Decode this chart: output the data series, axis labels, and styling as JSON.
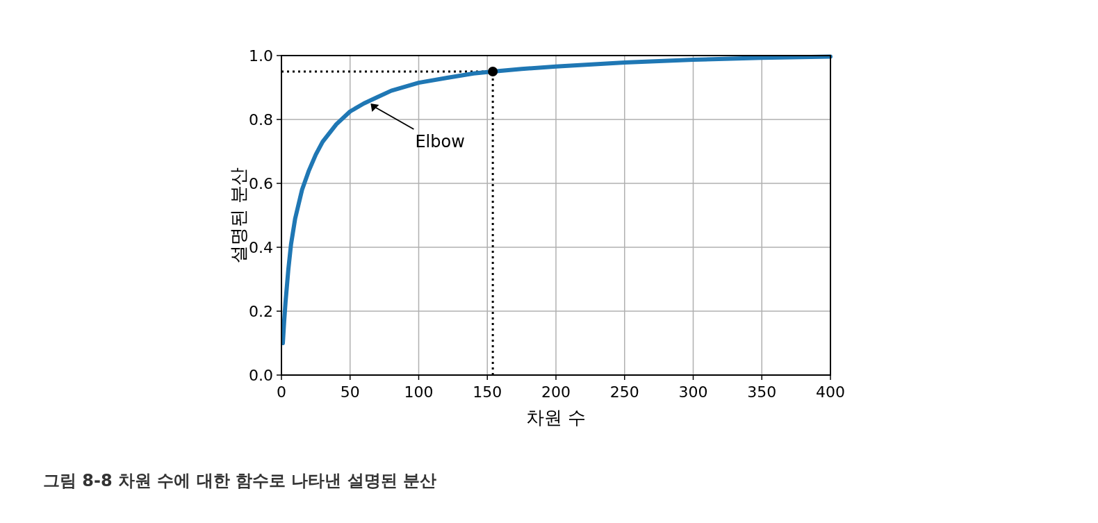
{
  "chart_data": {
    "type": "line",
    "xlabel": "차원 수",
    "ylabel": "설명된 분산",
    "x": [
      1,
      2,
      3,
      5,
      7,
      10,
      15,
      20,
      25,
      30,
      40,
      50,
      60,
      70,
      80,
      100,
      120,
      140,
      154,
      175,
      200,
      250,
      300,
      350,
      400
    ],
    "series": [
      {
        "color": "#1f77b4",
        "values": [
          0.1,
          0.17,
          0.23,
          0.33,
          0.41,
          0.49,
          0.58,
          0.64,
          0.69,
          0.73,
          0.785,
          0.825,
          0.85,
          0.87,
          0.89,
          0.915,
          0.93,
          0.944,
          0.95,
          0.958,
          0.966,
          0.978,
          0.987,
          0.993,
          0.997
        ]
      },
      {
        "type": "scatter",
        "color": "#000000",
        "marker": "circle",
        "x": [
          154
        ],
        "values": [
          0.95
        ]
      }
    ],
    "xlim": [
      0,
      400
    ],
    "ylim": [
      0,
      1
    ],
    "xticks": [
      0,
      50,
      100,
      150,
      200,
      250,
      300,
      350,
      400
    ],
    "yticks": [
      {
        "value": 0,
        "label": "0.0"
      },
      {
        "value": 0.2,
        "label": "0.2"
      },
      {
        "value": 0.4,
        "label": "0.4"
      },
      {
        "value": 0.6,
        "label": "0.6"
      },
      {
        "value": 0.8,
        "label": "0.8"
      },
      {
        "value": 1,
        "label": "1.0"
      }
    ],
    "grid": true,
    "ref_lines": [
      {
        "axis": "x",
        "value": 154,
        "color": "#000000",
        "line_style": "dotted"
      },
      {
        "axis": "y",
        "value": 0.95,
        "color": "#000000",
        "line_style": "dotted"
      }
    ],
    "annotations": [
      {
        "text": "Elbow",
        "x": 65,
        "y": 0.85
      },
      "그림 8-8 차원 수에 대한 함수로 나타낸 설명된 분산"
    ]
  }
}
